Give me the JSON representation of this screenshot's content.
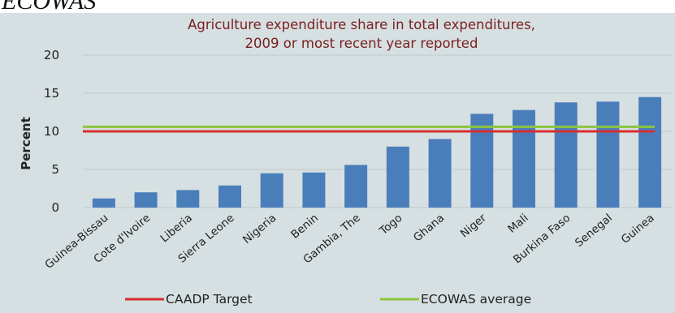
{
  "page_header": "ECOWAS",
  "colors": {
    "panel_background": "#d6dfe1",
    "bar": "#4a7ebb",
    "gridline": "#bfc9cc",
    "title": "#7a1f1f",
    "caadp": "#d62f2f",
    "ecowas": "#8cc63f"
  },
  "chart_data": {
    "type": "bar",
    "title": "Agriculture expenditure share in total expenditures,",
    "subtitle": "2009 or most recent year reported",
    "xlabel": "",
    "ylabel": "Percent",
    "ylim": [
      0,
      20
    ],
    "yticks": [
      0,
      5,
      10,
      15,
      20
    ],
    "grid": true,
    "legend_position": "bottom",
    "categories": [
      "Guinea-Bissau",
      "Cote d'Ivoire",
      "Liberia",
      "Sierra Leone",
      "Nigeria",
      "Benin",
      "Gambia, The",
      "Togo",
      "Ghana",
      "Niger",
      "Mali",
      "Burkina Faso",
      "Senegal",
      "Guinea"
    ],
    "values": [
      1.2,
      2.0,
      2.3,
      2.9,
      4.5,
      4.6,
      5.6,
      8.0,
      9.0,
      12.3,
      12.8,
      13.8,
      13.9,
      14.5
    ],
    "reference_lines": [
      {
        "name": "CAADP Target",
        "value": 10
      },
      {
        "name": "ECOWAS average",
        "value": 10.6
      }
    ]
  }
}
